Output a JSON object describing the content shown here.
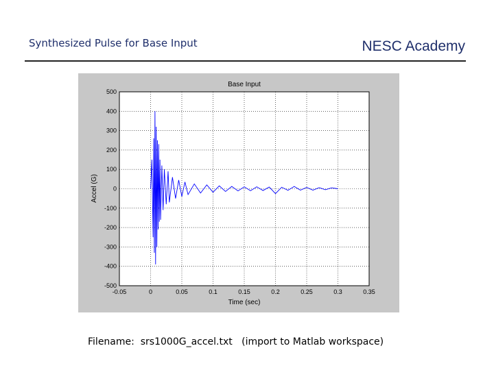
{
  "header": {
    "title": "Synthesized Pulse for Base Input",
    "organization": "NESC Academy"
  },
  "footer": {
    "filename_text": "Filename:  srs1000G_accel.txt   (import to Matlab workspace)"
  },
  "colors": {
    "title": "#1f2f6b",
    "series": "#0000ff",
    "figure_background": "#c7c7c7",
    "axes_background": "#ffffff",
    "grid": "#000000"
  },
  "chart_data": {
    "type": "line",
    "title": "Base Input",
    "xlabel": "Time (sec)",
    "ylabel": "Accel (G)",
    "xlim": [
      -0.05,
      0.35
    ],
    "ylim": [
      -500,
      500
    ],
    "xticks": [
      -0.05,
      0,
      0.05,
      0.1,
      0.15,
      0.2,
      0.25,
      0.3,
      0.35
    ],
    "xtick_labels": [
      "-0.05",
      "0",
      "0.05",
      "0.1",
      "0.15",
      "0.2",
      "0.25",
      "0.3",
      "0.35"
    ],
    "yticks": [
      -500,
      -400,
      -300,
      -200,
      -100,
      0,
      100,
      200,
      300,
      400,
      500
    ],
    "ytick_labels": [
      "-500",
      "-400",
      "-300",
      "-200",
      "-100",
      "0",
      "100",
      "200",
      "300",
      "400",
      "500"
    ],
    "grid": "dotted",
    "legend": "none",
    "series": [
      {
        "x": [
          0,
          0.002,
          0.004,
          0.005,
          0.006,
          0.007,
          0.008,
          0.009,
          0.01,
          0.011,
          0.012,
          0.013,
          0.014,
          0.015,
          0.016,
          0.018,
          0.02,
          0.022,
          0.025,
          0.028,
          0.03,
          0.035,
          0.04,
          0.045,
          0.05,
          0.055,
          0.06,
          0.07,
          0.08,
          0.09,
          0.1,
          0.11,
          0.12,
          0.13,
          0.14,
          0.15,
          0.16,
          0.17,
          0.18,
          0.19,
          0.2,
          0.21,
          0.22,
          0.23,
          0.24,
          0.25,
          0.26,
          0.27,
          0.28,
          0.29,
          0.3
        ],
        "y": [
          0,
          150,
          -250,
          260,
          -330,
          400,
          -390,
          320,
          -300,
          250,
          -210,
          230,
          -170,
          150,
          -160,
          120,
          -110,
          100,
          -80,
          90,
          -70,
          60,
          -50,
          45,
          -40,
          35,
          -30,
          25,
          -22,
          20,
          -18,
          15,
          -14,
          12,
          -11,
          10,
          -10,
          10,
          -9,
          9,
          -25,
          8,
          -8,
          12,
          -7,
          7,
          -7,
          6,
          -5,
          5,
          0
        ]
      }
    ]
  }
}
